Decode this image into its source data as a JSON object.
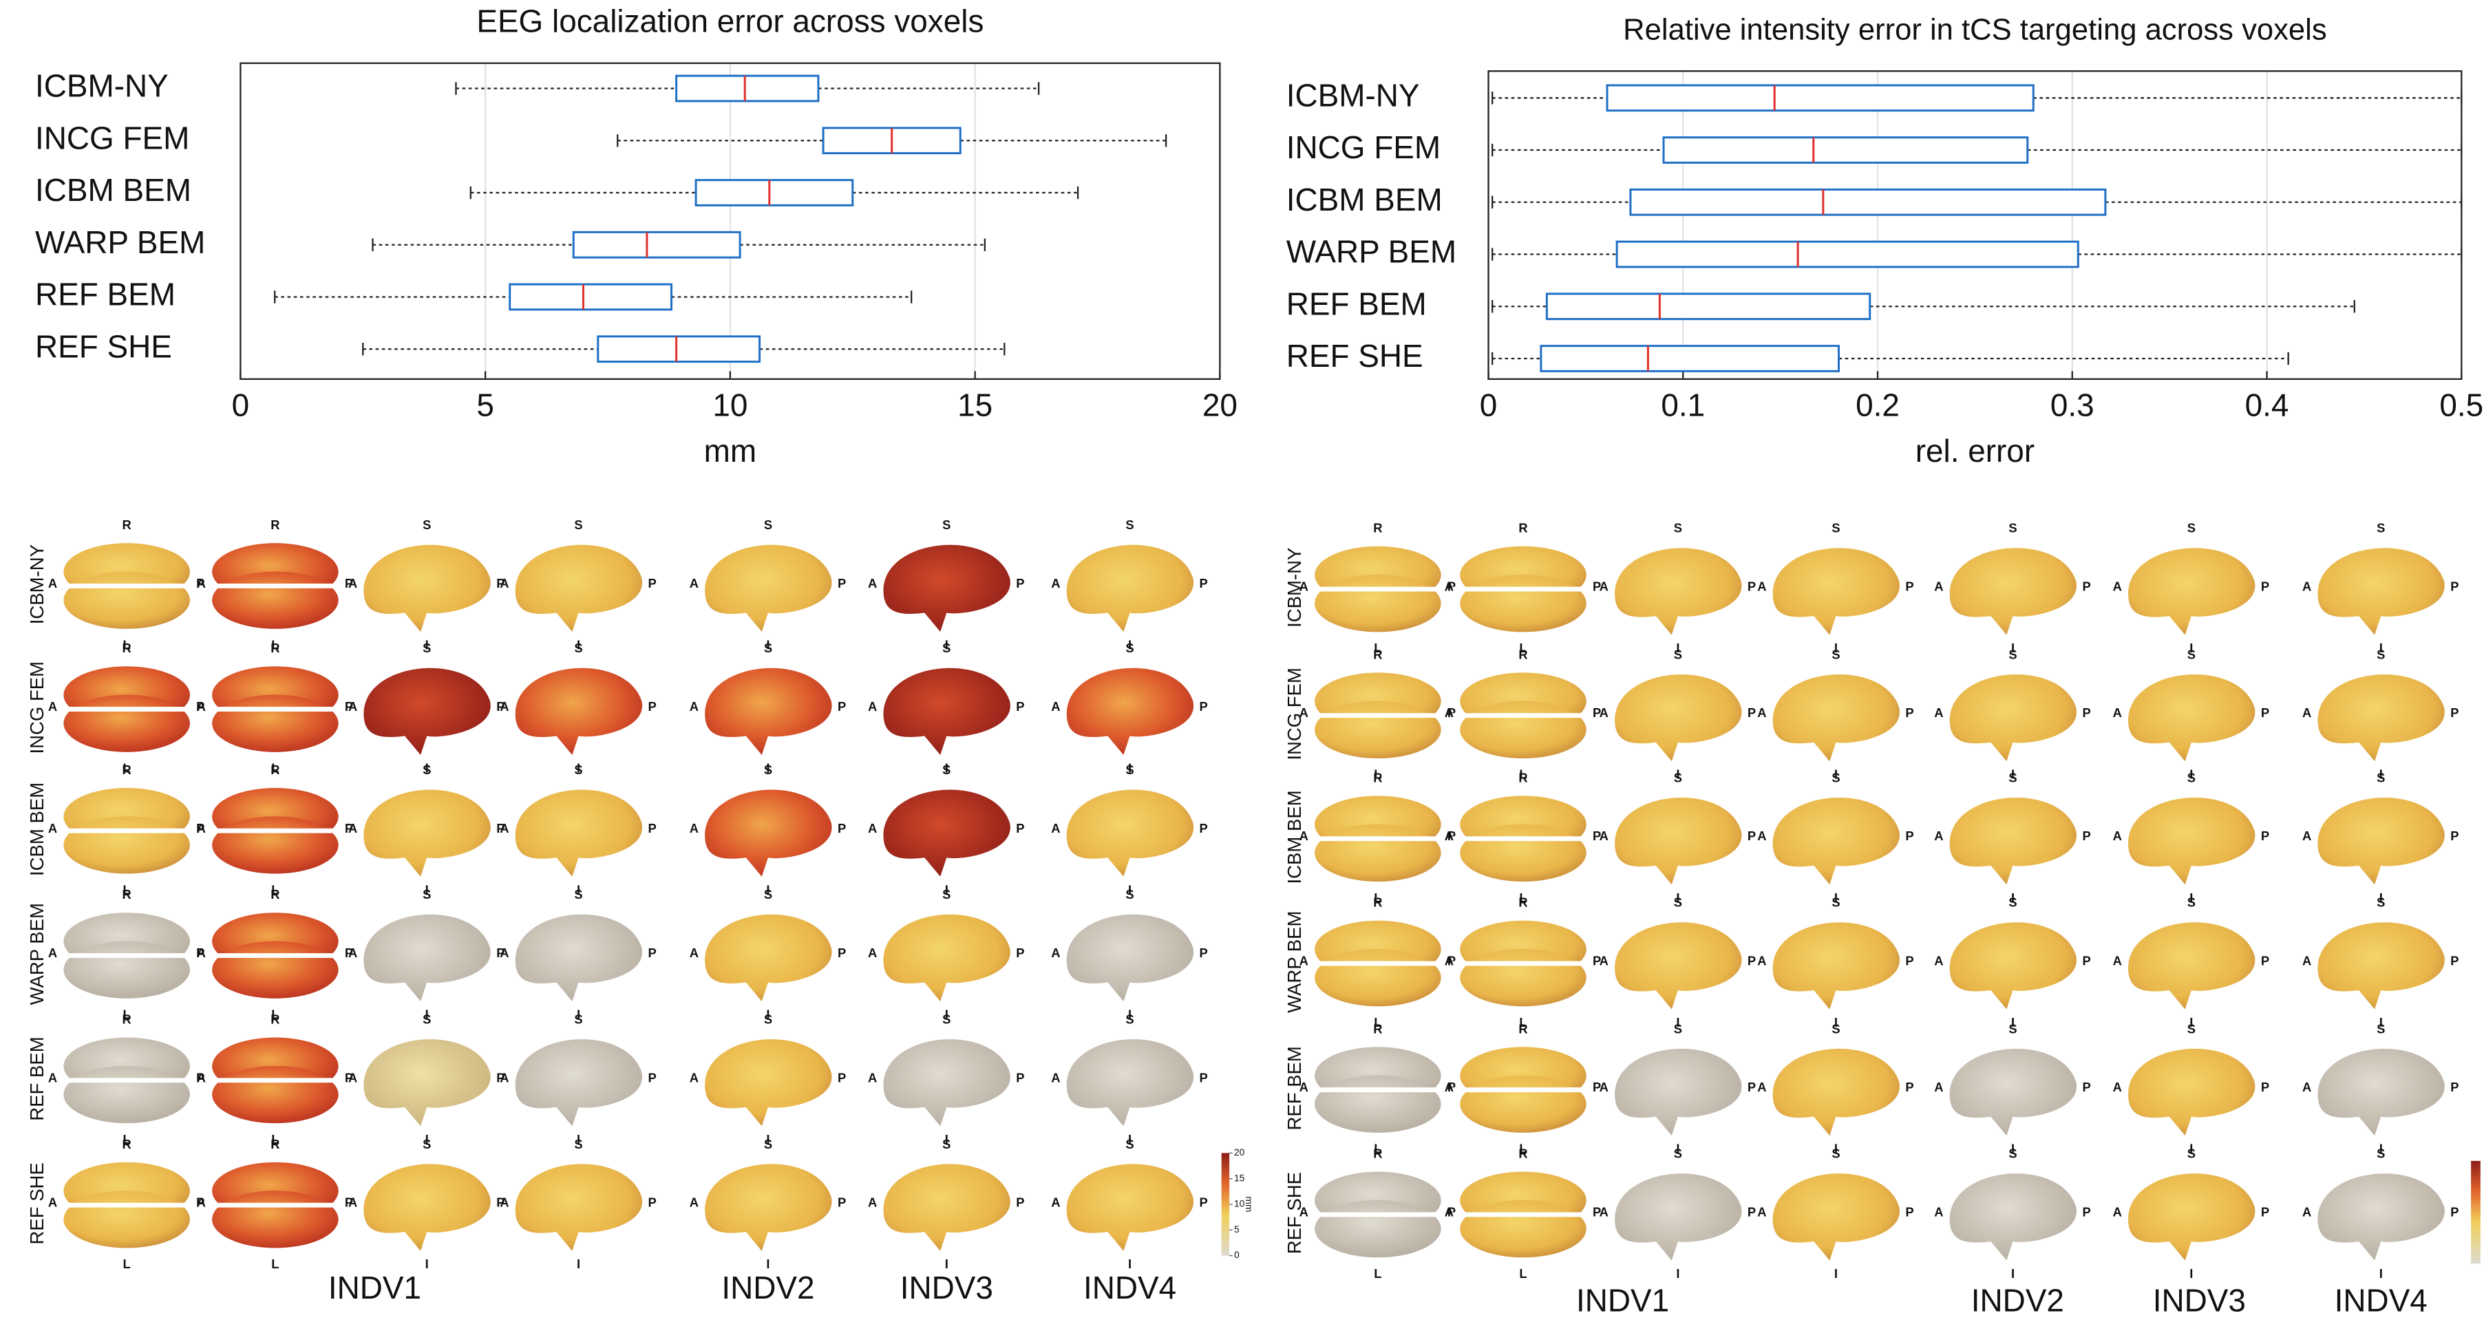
{
  "chart_data": [
    {
      "type": "boxplot",
      "title": "EEG localization error across voxels",
      "xlabel": "mm",
      "categories": [
        "ICBM-NY",
        "INCG FEM",
        "ICBM BEM",
        "WARP BEM",
        "REF BEM",
        "REF SHE"
      ],
      "min": [
        4.4,
        7.7,
        4.7,
        2.7,
        0.7,
        2.5
      ],
      "q1": [
        8.9,
        11.9,
        9.3,
        6.8,
        5.5,
        7.3
      ],
      "median": [
        10.3,
        13.3,
        10.8,
        8.3,
        7.0,
        8.9
      ],
      "q3": [
        11.8,
        14.7,
        12.5,
        10.2,
        8.8,
        10.6
      ],
      "max": [
        16.3,
        18.9,
        17.1,
        15.2,
        13.7,
        15.6
      ],
      "color": "#1f6fc5",
      "median_color": "#e0302a",
      "xlim": [
        0,
        20
      ],
      "xticks": [
        0,
        5,
        10,
        15,
        20
      ],
      "grid": true
    },
    {
      "type": "boxplot",
      "title": "Relative intensity error in tCS targeting across voxels",
      "xlabel": "rel. error",
      "categories": [
        "ICBM-NY",
        "INCG FEM",
        "ICBM BEM",
        "WARP BEM",
        "REF BEM",
        "REF SHE"
      ],
      "min": [
        0.002,
        0.002,
        0.002,
        0.002,
        0.002,
        0.002
      ],
      "q1": [
        0.061,
        0.09,
        0.073,
        0.066,
        0.03,
        0.027
      ],
      "median": [
        0.147,
        0.167,
        0.172,
        0.159,
        0.088,
        0.082
      ],
      "q3": [
        0.28,
        0.277,
        0.317,
        0.303,
        0.196,
        0.18
      ],
      "max": [
        0.5,
        0.5,
        0.5,
        0.5,
        0.445,
        0.411
      ],
      "color": "#1f6fc5",
      "median_color": "#e0302a",
      "xlim": [
        0,
        0.5
      ],
      "xticks": [
        0,
        0.1,
        0.2,
        0.3,
        0.4,
        0.5
      ],
      "grid": true
    }
  ],
  "brain_panels": [
    {
      "row_labels": [
        "ICBM-NY",
        "INCG FEM",
        "ICBM BEM",
        "WARP BEM",
        "REF BEM",
        "REF SHE"
      ],
      "column_labels": [
        "INDV1",
        "INDV2",
        "INDV3",
        "INDV4"
      ],
      "colorbar": {
        "ticks": [
          0,
          5,
          10,
          15,
          20
        ],
        "label": "mm"
      }
    },
    {
      "row_labels": [
        "ICBM-NY",
        "INCG FEM",
        "ICBM BEM",
        "WARP BEM",
        "REF BEM",
        "REF SHE"
      ],
      "column_labels": [
        "INDV1",
        "INDV2",
        "INDV3",
        "INDV4"
      ]
    }
  ],
  "orientation_labels": [
    "R",
    "L",
    "A",
    "P",
    "S",
    "I"
  ]
}
